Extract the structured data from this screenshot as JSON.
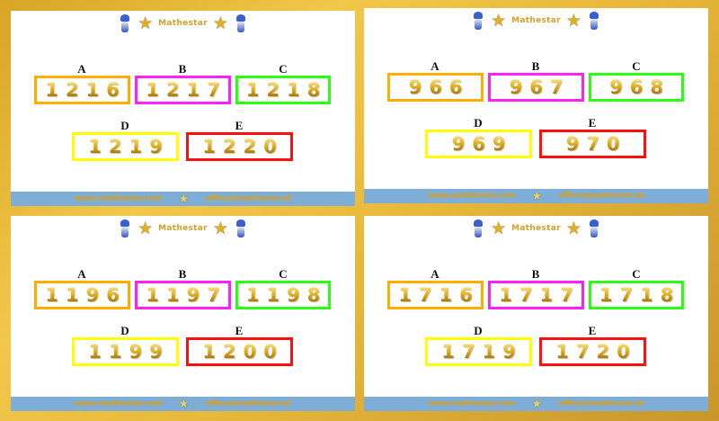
{
  "brand": "Mathestar",
  "footer": {
    "website": "www.mathestar.com",
    "email": "office@mathestar.at"
  },
  "option_labels": [
    "A",
    "B",
    "C",
    "D",
    "E"
  ],
  "colors": {
    "A": "#ffad00",
    "B": "#ff20ff",
    "C": "#2cff16",
    "D": "#ffff00",
    "E": "#ff1010",
    "footer": "#7eaed8",
    "frame": "#e8b83a"
  },
  "panels": [
    {
      "values": [
        "1216",
        "1217",
        "1218",
        "1219",
        "1220"
      ]
    },
    {
      "values": [
        "966",
        "967",
        "968",
        "969",
        "970"
      ]
    },
    {
      "values": [
        "1196",
        "1197",
        "1198",
        "1199",
        "1200"
      ]
    },
    {
      "values": [
        "1716",
        "1717",
        "1718",
        "1719",
        "1720"
      ]
    }
  ]
}
